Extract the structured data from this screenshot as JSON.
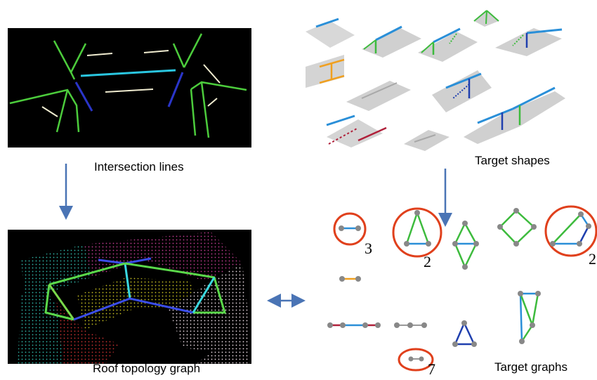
{
  "labels": {
    "intersection_lines": "Intersection lines",
    "target_shapes": "Target shapes",
    "roof_topology_graph": "Roof topology graph",
    "target_graphs": "Target graphs"
  },
  "counts": {
    "edge_graph": "3",
    "triangle_graph": "2",
    "trapezoid_graph": "2",
    "small_edge_graph": "7"
  },
  "colors": {
    "ridge": "#2a8fd8",
    "hip": "#3dbb3d",
    "valley": "#1f3fae",
    "step": "#f0a020",
    "eave": "#b0203a",
    "node": "#888888",
    "highlight": "#e0401c",
    "arrow": "#4a74b5"
  }
}
